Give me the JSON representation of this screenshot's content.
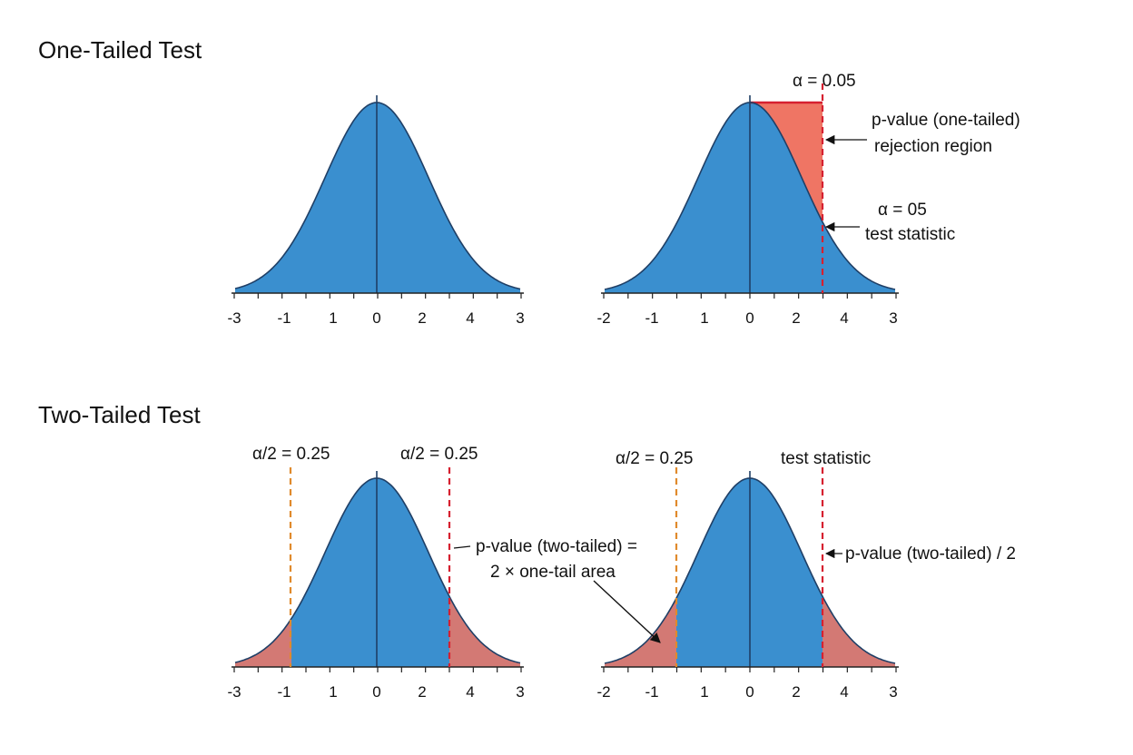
{
  "colors": {
    "curve_fill": "#3a8fcf",
    "curve_stroke": "#1f3f66",
    "tail_fill": "#ef7564",
    "critical_line": "#d62030",
    "alpha_line": "#e08a2c",
    "axis": "#222222"
  },
  "sections": {
    "one_tailed_title": "One-Tailed Test",
    "two_tailed_title": "Two-Tailed Test"
  },
  "panels": [
    {
      "id": "one-left",
      "ticks": [
        "-3",
        "-1",
        "1",
        "0",
        "2",
        "4",
        "3"
      ],
      "labels": []
    },
    {
      "id": "one-right",
      "ticks": [
        "-2",
        "-1",
        "1",
        "0",
        "2",
        "4",
        "3"
      ],
      "labels": [
        "α = 0.05",
        "p-value (one-tailed)",
        "rejection region",
        "α = 05",
        "test statistic"
      ]
    },
    {
      "id": "two-left",
      "ticks": [
        "-3",
        "-1",
        "1",
        "0",
        "2",
        "4",
        "3"
      ],
      "labels": [
        "α/2 = 0.25",
        "α/2 = 0.25",
        "p-value (two-tailed) =",
        "2 × one-tail area"
      ]
    },
    {
      "id": "two-right",
      "ticks": [
        "-2",
        "-1",
        "1",
        "0",
        "2",
        "4",
        "3"
      ],
      "labels": [
        "α/2 = 0.25",
        "test statistic",
        "p-value (two-tailed) / 2"
      ]
    }
  ]
}
